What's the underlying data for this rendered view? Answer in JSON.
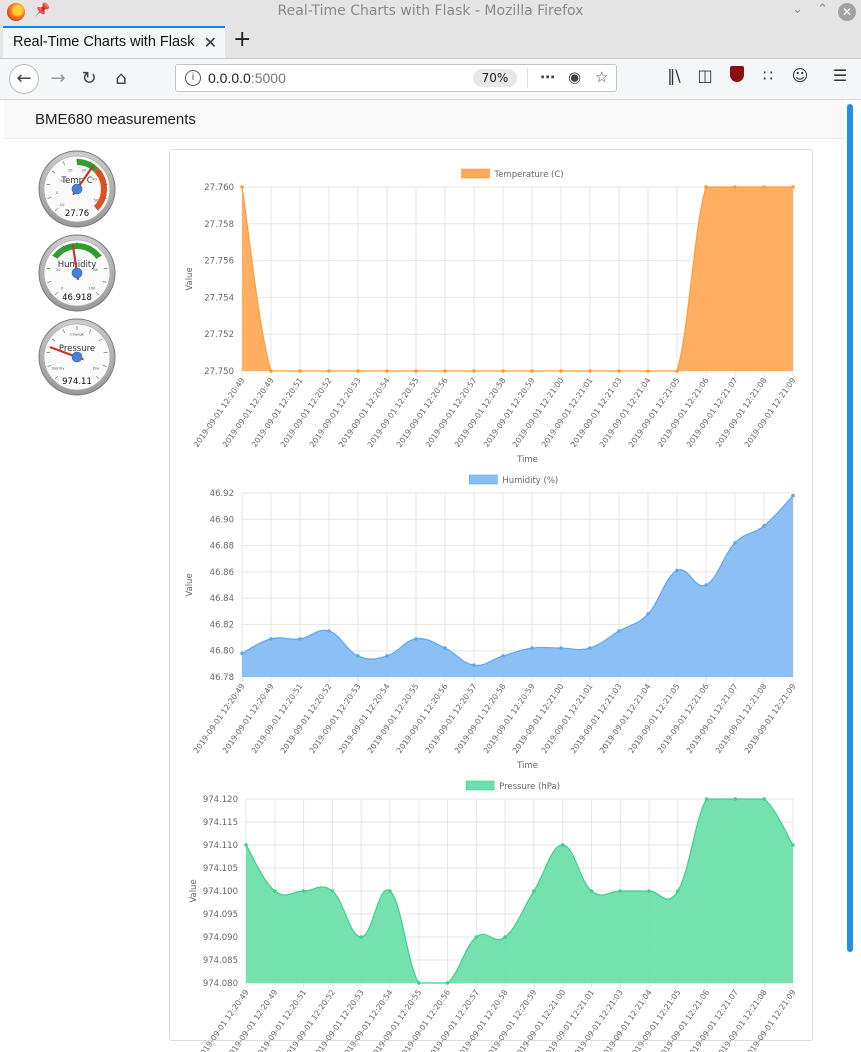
{
  "window": {
    "title": "Real-Time Charts with Flask - Mozilla Firefox"
  },
  "tab": {
    "label": "Real-Time Charts with Flask"
  },
  "address": {
    "host": "0.0.0.0",
    "port": ":5000",
    "zoom": "70%"
  },
  "page": {
    "heading": "BME680 measurements"
  },
  "gauges": [
    {
      "label": "Temp C",
      "value": "27.76",
      "min": -10,
      "max": 50,
      "reading": 27.76,
      "ticks": [
        "10",
        "20",
        "0",
        "-10",
        "30",
        "40",
        "50"
      ]
    },
    {
      "label": "Humidity",
      "value": "46.918",
      "min": 0,
      "max": 100,
      "reading": 46.918,
      "ticks": [
        "20",
        "0",
        "80",
        "100"
      ]
    },
    {
      "label": "Pressure",
      "value": "974.11",
      "min": 950,
      "max": 1050,
      "reading": 974.11,
      "ticks": [
        "Change",
        "Stormy",
        "Dry"
      ]
    }
  ],
  "colors": {
    "temperature": "#ffaa5a",
    "humidity": "#86bdf3",
    "pressure": "#6ddfaa"
  },
  "chart_data": [
    {
      "type": "area",
      "title": "Temperature (C)",
      "xlabel": "Time",
      "ylabel": "Value",
      "x": [
        "2019-09-01 12:20:49",
        "2019-09-01 12:20:49",
        "2019-09-01 12:20:51",
        "2019-09-01 12:20:52",
        "2019-09-01 12:20:53",
        "2019-09-01 12:20:54",
        "2019-09-01 12:20:55",
        "2019-09-01 12:20:56",
        "2019-09-01 12:20:57",
        "2019-09-01 12:20:58",
        "2019-09-01 12:20:59",
        "2019-09-01 12:21:00",
        "2019-09-01 12:21:01",
        "2019-09-01 12:21:03",
        "2019-09-01 12:21:04",
        "2019-09-01 12:21:05",
        "2019-09-01 12:21:06",
        "2019-09-01 12:21:07",
        "2019-09-01 12:21:08",
        "2019-09-01 12:21:09"
      ],
      "series": [
        {
          "name": "Temperature (C)",
          "values": [
            27.76,
            27.75,
            27.75,
            27.75,
            27.75,
            27.75,
            27.75,
            27.75,
            27.75,
            27.75,
            27.75,
            27.75,
            27.75,
            27.75,
            27.75,
            27.75,
            27.76,
            27.76,
            27.76,
            27.76
          ]
        }
      ],
      "ylim": [
        27.75,
        27.76
      ],
      "yticks": [
        "27.760",
        "27.758",
        "27.756",
        "27.754",
        "27.752",
        "27.750"
      ],
      "grid": true,
      "legend": "top-center"
    },
    {
      "type": "area",
      "title": "Humidity (%)",
      "xlabel": "Time",
      "ylabel": "Value",
      "x": [
        "2019-09-01 12:20:49",
        "2019-09-01 12:20:49",
        "2019-09-01 12:20:51",
        "2019-09-01 12:20:52",
        "2019-09-01 12:20:53",
        "2019-09-01 12:20:54",
        "2019-09-01 12:20:55",
        "2019-09-01 12:20:56",
        "2019-09-01 12:20:57",
        "2019-09-01 12:20:58",
        "2019-09-01 12:20:59",
        "2019-09-01 12:21:00",
        "2019-09-01 12:21:01",
        "2019-09-01 12:21:03",
        "2019-09-01 12:21:04",
        "2019-09-01 12:21:05",
        "2019-09-01 12:21:06",
        "2019-09-01 12:21:07",
        "2019-09-01 12:21:08",
        "2019-09-01 12:21:09"
      ],
      "series": [
        {
          "name": "Humidity (%)",
          "values": [
            46.798,
            46.809,
            46.809,
            46.815,
            46.796,
            46.796,
            46.809,
            46.802,
            46.789,
            46.796,
            46.802,
            46.802,
            46.802,
            46.815,
            46.828,
            46.861,
            46.85,
            46.882,
            46.895,
            46.918
          ]
        }
      ],
      "ylim": [
        46.78,
        46.92
      ],
      "yticks": [
        "46.92",
        "46.90",
        "46.88",
        "46.86",
        "46.84",
        "46.82",
        "46.80",
        "46.78"
      ],
      "grid": true,
      "legend": "top-center"
    },
    {
      "type": "area",
      "title": "Pressure (hPa)",
      "xlabel": "Time",
      "ylabel": "Value",
      "x": [
        "2019-09-01 12:20:49",
        "2019-09-01 12:20:49",
        "2019-09-01 12:20:51",
        "2019-09-01 12:20:52",
        "2019-09-01 12:20:53",
        "2019-09-01 12:20:54",
        "2019-09-01 12:20:55",
        "2019-09-01 12:20:56",
        "2019-09-01 12:20:57",
        "2019-09-01 12:20:58",
        "2019-09-01 12:20:59",
        "2019-09-01 12:21:00",
        "2019-09-01 12:21:01",
        "2019-09-01 12:21:03",
        "2019-09-01 12:21:04",
        "2019-09-01 12:21:05",
        "2019-09-01 12:21:06",
        "2019-09-01 12:21:07",
        "2019-09-01 12:21:08",
        "2019-09-01 12:21:09"
      ],
      "series": [
        {
          "name": "Pressure (hPa)",
          "values": [
            974.11,
            974.1,
            974.1,
            974.1,
            974.09,
            974.1,
            974.08,
            974.08,
            974.09,
            974.09,
            974.1,
            974.11,
            974.1,
            974.1,
            974.1,
            974.1,
            974.12,
            974.12,
            974.12,
            974.11
          ]
        }
      ],
      "ylim": [
        974.08,
        974.12
      ],
      "yticks": [
        "974.120",
        "974.115",
        "974.110",
        "974.105",
        "974.100",
        "974.095",
        "974.090",
        "974.085",
        "974.080"
      ],
      "grid": true,
      "legend": "top-center"
    }
  ]
}
